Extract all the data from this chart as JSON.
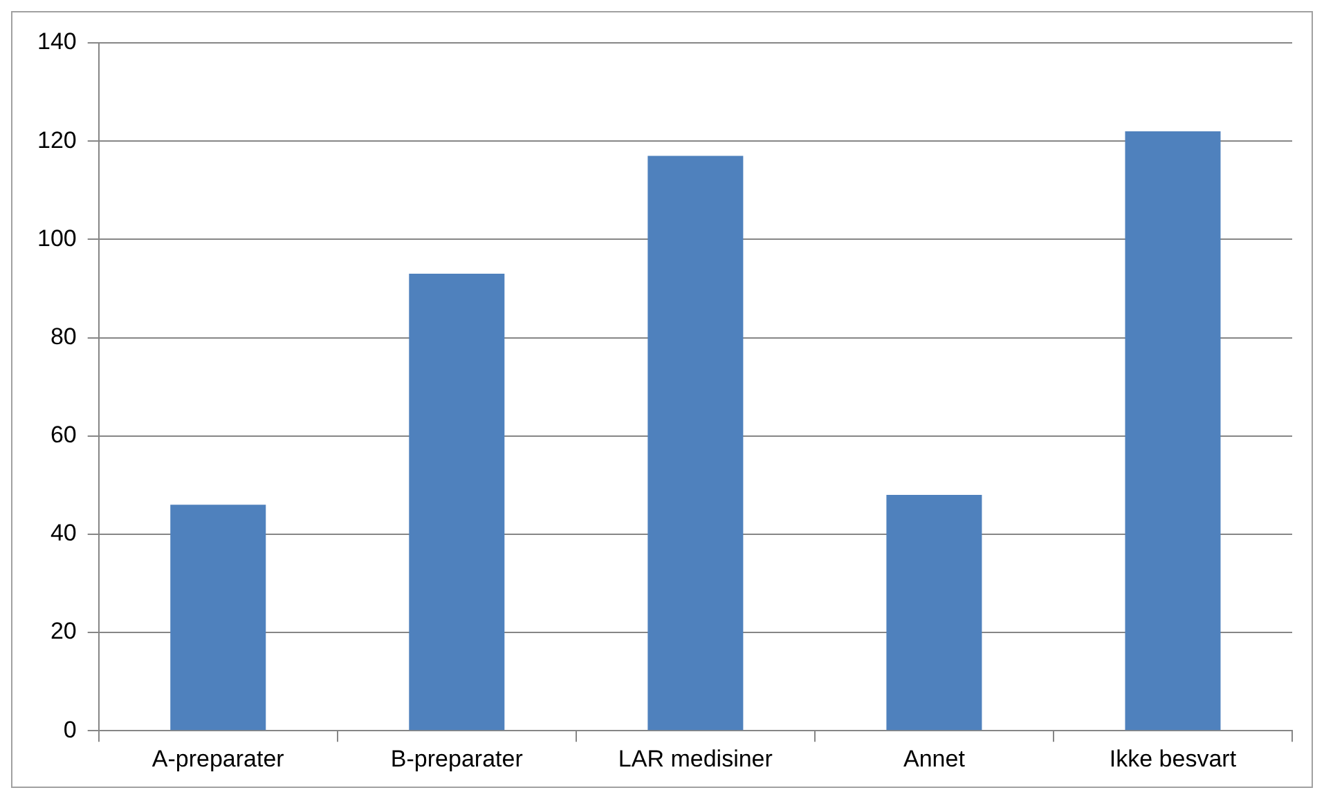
{
  "chart_data": {
    "type": "bar",
    "categories": [
      "A-preparater",
      "B-preparater",
      "LAR medisiner",
      "Annet",
      "Ikke besvart"
    ],
    "values": [
      46,
      93,
      117,
      48,
      122
    ],
    "color": "#4f81bd",
    "ylim": [
      0,
      140
    ],
    "yticks": [
      0,
      20,
      40,
      60,
      80,
      100,
      120,
      140
    ],
    "grid": "y",
    "legend": false
  }
}
